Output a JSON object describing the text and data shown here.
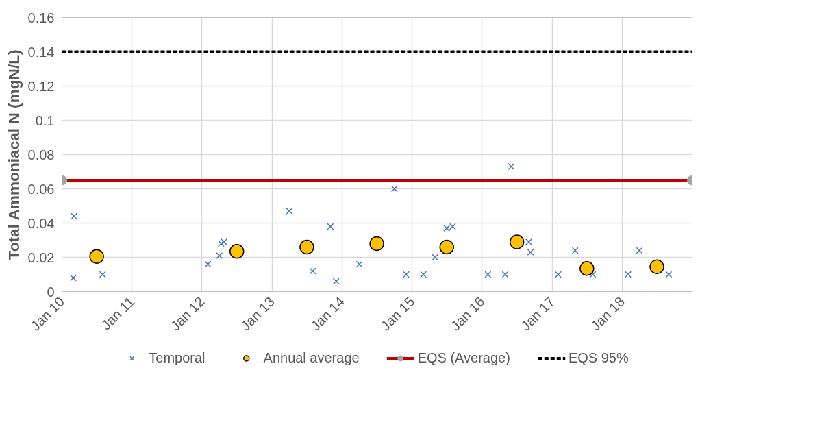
{
  "chart_data": {
    "type": "scatter",
    "ylabel": "Total Ammoniacal N (mgN/L)",
    "xlim": [
      "2010-01-01",
      "2019-01-01"
    ],
    "xticks": [
      {
        "value": "2010-01-01",
        "label": "Jan 10"
      },
      {
        "value": "2011-01-01",
        "label": "Jan 11"
      },
      {
        "value": "2012-01-01",
        "label": "Jan 12"
      },
      {
        "value": "2013-01-01",
        "label": "Jan 13"
      },
      {
        "value": "2014-01-01",
        "label": "Jan 14"
      },
      {
        "value": "2015-01-01",
        "label": "Jan 15"
      },
      {
        "value": "2016-01-01",
        "label": "Jan 16"
      },
      {
        "value": "2017-01-01",
        "label": "Jan 17"
      },
      {
        "value": "2018-01-01",
        "label": "Jan 18"
      }
    ],
    "ylim": [
      0,
      0.16
    ],
    "yticks": [
      0,
      0.02,
      0.04,
      0.06,
      0.08,
      0.1,
      0.12,
      0.14,
      0.16
    ],
    "grid": true,
    "legend": "bottom",
    "series": [
      {
        "name": "Temporal",
        "type": "scatter",
        "marker": "cross",
        "color": "#4472c4",
        "x": [
          "2010-03",
          "2010-03-05",
          "2010-08",
          "2012-02",
          "2012-04",
          "2012-04-10",
          "2012-04-25",
          "2013-04",
          "2013-08",
          "2013-11",
          "2013-12",
          "2014-04",
          "2014-10",
          "2014-12",
          "2015-03",
          "2015-05",
          "2015-07",
          "2015-08",
          "2016-02",
          "2016-05",
          "2016-06",
          "2016-09",
          "2016-09-10",
          "2017-02",
          "2017-05",
          "2017-08",
          "2018-02",
          "2018-04",
          "2018-09"
        ],
        "values": [
          0.008,
          0.044,
          0.01,
          0.016,
          0.021,
          0.028,
          0.029,
          0.047,
          0.012,
          0.038,
          0.006,
          0.016,
          0.06,
          0.01,
          0.01,
          0.02,
          0.037,
          0.038,
          0.01,
          0.01,
          0.073,
          0.029,
          0.023,
          0.01,
          0.024,
          0.01,
          0.01,
          0.024,
          0.01
        ]
      },
      {
        "name": "Annual average",
        "type": "scatter",
        "marker": "circle",
        "color": "#ffc000",
        "x": [
          "2010-07",
          "2012-07",
          "2013-07",
          "2014-07",
          "2015-07",
          "2016-07",
          "2017-07",
          "2018-07"
        ],
        "values": [
          0.0205,
          0.0235,
          0.026,
          0.028,
          0.026,
          0.029,
          0.0135,
          0.0145
        ]
      },
      {
        "name": "EQS (Average)",
        "type": "line",
        "marker": "circle",
        "line_style": "solid",
        "color": "#c00000",
        "x": [
          "2010-01-01",
          "2019-01-01"
        ],
        "values": [
          0.065,
          0.065
        ]
      },
      {
        "name": "EQS 95%",
        "type": "line",
        "marker": "none",
        "line_style": "dashed",
        "color": "#000000",
        "x": [
          "2010-01-01",
          "2019-01-01"
        ],
        "values": [
          0.14,
          0.14
        ]
      }
    ]
  }
}
